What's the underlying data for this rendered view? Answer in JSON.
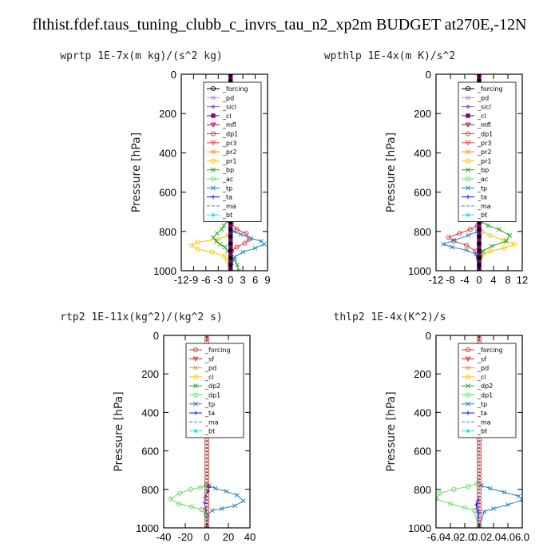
{
  "title": "flthist.fdef.taus_tuning_clubb_c_invrs_tau_n2_xp2m  BUDGET at270E,-12N",
  "chart_data": [
    {
      "type": "line",
      "title": "wprtp  1E-7x(m kg)/(s^2 kg)",
      "ylabel": "Pressure [hPa]",
      "xlim": [
        -12,
        9
      ],
      "ylim": [
        1000,
        0
      ],
      "xticks": [
        "-12",
        "-9",
        "-6",
        "-3",
        "0",
        "3",
        "6",
        "9"
      ],
      "xtick_values": [
        -12,
        -9,
        -6,
        -3,
        0,
        3,
        6,
        9
      ],
      "yticks": [
        "0",
        "200",
        "400",
        "600",
        "800",
        "1000"
      ],
      "ytick_values": [
        0,
        200,
        400,
        600,
        800,
        1000
      ],
      "legend_position": "top-right",
      "series": [
        {
          "name": "_forcing",
          "color": "#000000",
          "marker": "o",
          "x": [
            0,
            0,
            0,
            0,
            0,
            0,
            0,
            0
          ],
          "y": [
            0,
            200,
            400,
            600,
            760,
            860,
            950,
            1000
          ]
        },
        {
          "name": "_pd",
          "color": "#c080c0",
          "marker": "x",
          "x": [
            0,
            0,
            0
          ],
          "y": [
            0,
            500,
            1000
          ]
        },
        {
          "name": "_sicl",
          "color": "#8060c0",
          "marker": "*",
          "x": [
            0,
            0,
            0
          ],
          "y": [
            0,
            500,
            1000
          ]
        },
        {
          "name": "_cl",
          "color": "#800080",
          "marker": "s",
          "x": [
            0,
            0,
            0
          ],
          "y": [
            0,
            500,
            1000
          ]
        },
        {
          "name": "_mfl",
          "color": "#a00040",
          "marker": "tri",
          "x": [
            0,
            0,
            0
          ],
          "y": [
            0,
            500,
            1000
          ]
        },
        {
          "name": "_dp1",
          "color": "#e03030",
          "marker": "o",
          "x": [
            0,
            0,
            0.2,
            1.5,
            3.8,
            4.5,
            3.5,
            1.5,
            0.3,
            0,
            0
          ],
          "y": [
            0,
            700,
            760,
            790,
            810,
            840,
            860,
            880,
            900,
            930,
            1000
          ]
        },
        {
          "name": "_pr3",
          "color": "#ff4040",
          "marker": "tri",
          "x": [
            0,
            0,
            0
          ],
          "y": [
            0,
            500,
            1000
          ]
        },
        {
          "name": "_pr2",
          "color": "#ff9020",
          "marker": "x",
          "x": [
            0,
            0,
            0
          ],
          "y": [
            0,
            500,
            1000
          ]
        },
        {
          "name": "_pr1",
          "color": "#ffc000",
          "marker": "o",
          "x": [
            0,
            0,
            -0.5,
            -3,
            -8,
            -9.5,
            -8,
            -4.5,
            -1.5,
            -0.8,
            -0.3
          ],
          "y": [
            0,
            780,
            820,
            840,
            855,
            870,
            890,
            905,
            925,
            950,
            980
          ]
        },
        {
          "name": "_bp",
          "color": "#20a020",
          "marker": "x",
          "x": [
            0,
            0,
            -0.8,
            -1.6,
            -2.2,
            -3.3,
            -4.2,
            -3.5,
            -2.5,
            -1.4,
            -0.7,
            0,
            1,
            1.6,
            2
          ],
          "y": [
            0,
            730,
            750,
            770,
            790,
            810,
            830,
            850,
            865,
            880,
            900,
            920,
            945,
            970,
            1000
          ]
        },
        {
          "name": "_ac",
          "color": "#60e060",
          "marker": "o",
          "x": [
            0,
            0,
            0
          ],
          "y": [
            0,
            500,
            1000
          ]
        },
        {
          "name": "_tp",
          "color": "#2080c0",
          "marker": "x",
          "x": [
            0,
            0,
            0.8,
            2.5,
            5,
            7.5,
            8.2,
            6,
            3,
            1,
            0.3
          ],
          "y": [
            0,
            780,
            800,
            815,
            835,
            850,
            865,
            885,
            905,
            930,
            960
          ]
        },
        {
          "name": "_ta",
          "color": "#0000ff",
          "marker": "+",
          "x": [
            0,
            0,
            0
          ],
          "y": [
            0,
            500,
            1000
          ]
        },
        {
          "name": "_ma",
          "color": "#2090d0",
          "marker": "-",
          "x": [
            0,
            0,
            0
          ],
          "y": [
            0,
            500,
            1000
          ]
        },
        {
          "name": "_bt",
          "color": "#20e0e0",
          "marker": "*",
          "x": [
            0,
            0,
            0
          ],
          "y": [
            0,
            500,
            1000
          ]
        }
      ]
    },
    {
      "type": "line",
      "title": "wpthlp  1E-4x(m K)/s^2",
      "ylabel": "Pressure [hPa]",
      "xlim": [
        -12,
        12
      ],
      "ylim": [
        1000,
        0
      ],
      "xticks": [
        "-12",
        "-8",
        "-4",
        "0",
        "4",
        "8",
        "12"
      ],
      "xtick_values": [
        -12,
        -8,
        -4,
        0,
        4,
        8,
        12
      ],
      "yticks": [
        "0",
        "200",
        "400",
        "600",
        "800",
        "1000"
      ],
      "ytick_values": [
        0,
        200,
        400,
        600,
        800,
        1000
      ],
      "legend_position": "top-right",
      "series": [
        {
          "name": "_forcing",
          "color": "#000000",
          "marker": "o",
          "x": [
            0,
            0,
            0
          ],
          "y": [
            0,
            500,
            1000
          ]
        },
        {
          "name": "_pd",
          "color": "#c080c0",
          "marker": "x",
          "x": [
            0,
            0,
            0
          ],
          "y": [
            0,
            500,
            1000
          ]
        },
        {
          "name": "_sicl",
          "color": "#8060c0",
          "marker": "*",
          "x": [
            0,
            0,
            0
          ],
          "y": [
            0,
            500,
            1000
          ]
        },
        {
          "name": "_cl",
          "color": "#800080",
          "marker": "s",
          "x": [
            0,
            0,
            0
          ],
          "y": [
            0,
            500,
            1000
          ]
        },
        {
          "name": "_mfl",
          "color": "#a00040",
          "marker": "tri",
          "x": [
            0,
            0,
            0
          ],
          "y": [
            0,
            500,
            1000
          ]
        },
        {
          "name": "_dp1",
          "color": "#e03030",
          "marker": "o",
          "x": [
            0,
            0,
            -0.5,
            -2.5,
            -5.5,
            -8.5,
            -7,
            -3.5,
            -1,
            0
          ],
          "y": [
            0,
            740,
            770,
            790,
            810,
            830,
            850,
            870,
            900,
            1000
          ]
        },
        {
          "name": "_pr3",
          "color": "#ff4040",
          "marker": "tri",
          "x": [
            0,
            0,
            0
          ],
          "y": [
            0,
            500,
            1000
          ]
        },
        {
          "name": "_pr2",
          "color": "#ff9020",
          "marker": "x",
          "x": [
            0,
            0,
            0
          ],
          "y": [
            0,
            500,
            1000
          ]
        },
        {
          "name": "_pr1",
          "color": "#ffc000",
          "marker": "o",
          "x": [
            0,
            0,
            0.8,
            3,
            7,
            9.8,
            7,
            3,
            1,
            0
          ],
          "y": [
            0,
            780,
            800,
            820,
            845,
            865,
            885,
            900,
            920,
            1000
          ]
        },
        {
          "name": "_bp",
          "color": "#20a020",
          "marker": "x",
          "x": [
            0,
            0,
            0.5,
            2.5,
            5.5,
            8.5,
            7.5,
            3.5,
            1,
            0
          ],
          "y": [
            0,
            730,
            750,
            770,
            790,
            820,
            850,
            875,
            900,
            1000
          ]
        },
        {
          "name": "_ac",
          "color": "#60e060",
          "marker": "o",
          "x": [
            0,
            0,
            0
          ],
          "y": [
            0,
            500,
            1000
          ]
        },
        {
          "name": "_tp",
          "color": "#2080c0",
          "marker": "x",
          "x": [
            0,
            0,
            -0.5,
            -3,
            -7,
            -10,
            -7.5,
            -3.5,
            -1,
            0
          ],
          "y": [
            0,
            780,
            800,
            820,
            845,
            865,
            880,
            895,
            915,
            1000
          ]
        },
        {
          "name": "_ta",
          "color": "#0000ff",
          "marker": "+",
          "x": [
            0,
            0,
            0
          ],
          "y": [
            0,
            500,
            1000
          ]
        },
        {
          "name": "_ma",
          "color": "#2090d0",
          "marker": "-",
          "x": [
            0,
            0,
            0
          ],
          "y": [
            0,
            500,
            1000
          ]
        },
        {
          "name": "_bt",
          "color": "#20e0e0",
          "marker": "*",
          "x": [
            0,
            0,
            0
          ],
          "y": [
            0,
            500,
            1000
          ]
        }
      ]
    },
    {
      "type": "line",
      "title": "rtp2  1E-11x(kg^2)/(kg^2 s)",
      "ylabel": "Pressure [hPa]",
      "xlim": [
        -40,
        40
      ],
      "ylim": [
        1000,
        0
      ],
      "xticks": [
        "-40",
        "-20",
        "0",
        "20",
        "40"
      ],
      "xtick_values": [
        -40,
        -20,
        0,
        20,
        40
      ],
      "yticks": [
        "0",
        "200",
        "400",
        "600",
        "800",
        "1000"
      ],
      "ytick_values": [
        0,
        200,
        400,
        600,
        800,
        1000
      ],
      "legend_position": "top-right",
      "series": [
        {
          "name": "_forcing",
          "color": "#e03030",
          "marker": "o",
          "x": [
            0,
            0,
            0
          ],
          "y": [
            0,
            500,
            1000
          ]
        },
        {
          "name": "_sf",
          "color": "#d02020",
          "marker": "tri",
          "x": [
            0,
            0,
            0
          ],
          "y": [
            0,
            500,
            1000
          ]
        },
        {
          "name": "_pd",
          "color": "#ff9020",
          "marker": "x",
          "x": [
            0,
            0,
            0
          ],
          "y": [
            0,
            500,
            1000
          ]
        },
        {
          "name": "_cl",
          "color": "#ffc000",
          "marker": "o",
          "x": [
            0,
            0,
            0
          ],
          "y": [
            0,
            500,
            1000
          ]
        },
        {
          "name": "_dp2",
          "color": "#20a020",
          "marker": "x",
          "x": [
            0,
            0,
            0
          ],
          "y": [
            0,
            500,
            1000
          ]
        },
        {
          "name": "_dp1",
          "color": "#60e060",
          "marker": "o",
          "x": [
            0,
            0,
            -1,
            -6,
            -15,
            -25,
            -34,
            -26,
            -14,
            -5,
            -1,
            0
          ],
          "y": [
            0,
            760,
            780,
            790,
            800,
            820,
            850,
            875,
            890,
            905,
            930,
            1000
          ]
        },
        {
          "name": "_tp",
          "color": "#2080c0",
          "marker": "x",
          "x": [
            0,
            0,
            2,
            8,
            18,
            28,
            34,
            26,
            14,
            5,
            1,
            0
          ],
          "y": [
            0,
            770,
            780,
            795,
            810,
            830,
            860,
            885,
            900,
            910,
            930,
            1000
          ]
        },
        {
          "name": "_ta",
          "color": "#0000ff",
          "marker": "+",
          "x": [
            0,
            0,
            2,
            1,
            -1.5,
            -2,
            -1.5,
            0,
            0
          ],
          "y": [
            0,
            770,
            790,
            810,
            840,
            870,
            900,
            930,
            1000
          ]
        },
        {
          "name": "_ma",
          "color": "#2090d0",
          "marker": "-",
          "x": [
            0,
            0,
            0
          ],
          "y": [
            0,
            500,
            1000
          ]
        },
        {
          "name": "_bt",
          "color": "#20e0e0",
          "marker": "*",
          "x": [
            0,
            0,
            0
          ],
          "y": [
            0,
            500,
            1000
          ]
        }
      ]
    },
    {
      "type": "line",
      "title": "thlp2  1E-4x(K^2)/s",
      "ylabel": "Pressure [hPa]",
      "xlim": [
        -6,
        6
      ],
      "ylim": [
        1000,
        0
      ],
      "xticks": [
        "-6.0",
        "-4.0",
        "-2.0",
        "0.0",
        "2.0",
        "4.0",
        "6.0"
      ],
      "xtick_values": [
        -6,
        -4,
        -2,
        0,
        2,
        4,
        6
      ],
      "yticks": [
        "0",
        "200",
        "400",
        "600",
        "800",
        "1000"
      ],
      "ytick_values": [
        0,
        200,
        400,
        600,
        800,
        1000
      ],
      "legend_position": "top-right",
      "series": [
        {
          "name": "_forcing",
          "color": "#e03030",
          "marker": "o",
          "x": [
            0,
            0,
            0
          ],
          "y": [
            0,
            500,
            1000
          ]
        },
        {
          "name": "_sf",
          "color": "#d02020",
          "marker": "tri",
          "x": [
            0,
            0,
            0
          ],
          "y": [
            0,
            500,
            1000
          ]
        },
        {
          "name": "_pd",
          "color": "#ff9020",
          "marker": "x",
          "x": [
            0,
            0,
            0
          ],
          "y": [
            0,
            500,
            1000
          ]
        },
        {
          "name": "_cl",
          "color": "#ffc000",
          "marker": "o",
          "x": [
            0,
            0,
            0
          ],
          "y": [
            0,
            500,
            1000
          ]
        },
        {
          "name": "_dp2",
          "color": "#20a020",
          "marker": "x",
          "x": [
            0,
            0,
            0
          ],
          "y": [
            0,
            500,
            1000
          ]
        },
        {
          "name": "_dp1",
          "color": "#60e060",
          "marker": "o",
          "x": [
            0,
            0,
            -0.3,
            -1.5,
            -3.5,
            -5.5,
            -6,
            -4,
            -2,
            -0.7,
            0
          ],
          "y": [
            0,
            750,
            770,
            785,
            800,
            820,
            850,
            875,
            895,
            910,
            1000
          ]
        },
        {
          "name": "_tp",
          "color": "#2080c0",
          "marker": "x",
          "x": [
            0,
            0,
            0.3,
            1.5,
            3.5,
            5.5,
            6,
            4,
            2,
            0.7,
            0
          ],
          "y": [
            0,
            770,
            780,
            795,
            815,
            835,
            855,
            880,
            900,
            915,
            1000
          ]
        },
        {
          "name": "_ta",
          "color": "#0000ff",
          "marker": "+",
          "x": [
            0,
            0,
            -0.2,
            -0.4,
            -0.3,
            -0.1,
            0
          ],
          "y": [
            0,
            840,
            860,
            880,
            900,
            920,
            1000
          ]
        },
        {
          "name": "_ma",
          "color": "#2090d0",
          "marker": "-",
          "x": [
            0,
            0,
            0
          ],
          "y": [
            0,
            500,
            1000
          ]
        },
        {
          "name": "_bt",
          "color": "#20e0e0",
          "marker": "*",
          "x": [
            0,
            0,
            0
          ],
          "y": [
            0,
            500,
            1000
          ]
        }
      ]
    }
  ]
}
